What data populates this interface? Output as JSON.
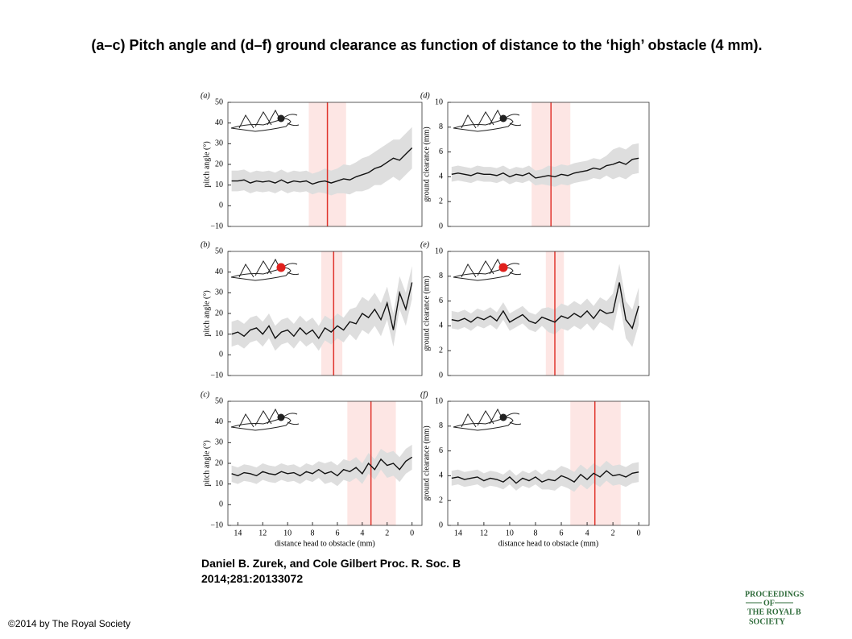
{
  "slide": {
    "title": "(a–c) Pitch angle and (d–f) ground clearance as function of distance to the ‘high’ obstacle (4 mm).",
    "citation": "Daniel B. Zurek, and Cole Gilbert Proc. R. Soc. B 2014;281:20133072",
    "copyright": "©2014 by The Royal Society",
    "logo": [
      "PROCEEDINGS",
      "OF",
      "THE ROYAL",
      "SOCIETY",
      "B"
    ]
  },
  "chart_data": [
    {
      "type": "line",
      "title": "(a)",
      "ylabel": "pitch angle (°)",
      "x": [
        14.5,
        14,
        13.5,
        13,
        12.5,
        12,
        11.5,
        11,
        10.5,
        10,
        9.5,
        9,
        8.5,
        8,
        7.5,
        7,
        6.5,
        6,
        5.5,
        5,
        4.5,
        4,
        3.5,
        3,
        2.5,
        2,
        1.5,
        1,
        0.5,
        0
      ],
      "series": [
        {
          "color": "#111111",
          "band_color": "#dedede",
          "values": [
            12,
            12,
            12.5,
            11,
            12,
            11.5,
            12,
            11,
            12.5,
            11,
            12,
            11.5,
            12,
            10.5,
            11.5,
            12,
            11,
            12,
            13,
            12.5,
            14,
            15,
            16,
            18,
            19,
            21,
            23,
            22,
            25,
            28
          ],
          "errors": [
            5,
            5,
            5,
            5,
            5,
            5,
            5,
            5,
            5,
            5,
            5,
            5,
            5,
            5,
            5,
            6,
            6,
            6,
            7,
            7,
            7,
            8,
            8,
            8,
            9,
            9,
            9,
            10,
            10,
            10
          ]
        }
      ],
      "xlim": [
        14.8,
        -0.8
      ],
      "ylim": [
        -10,
        50
      ],
      "yticks": [
        {
          "value": -10,
          "label": "−10"
        },
        0,
        10,
        20,
        30,
        40,
        50
      ],
      "vline": {
        "x": 6.8,
        "color": "#e0342c"
      },
      "vspan": {
        "range": [
          8.3,
          5.3
        ],
        "color": "#fde6e4"
      }
    },
    {
      "type": "line",
      "title": "(b)",
      "ylabel": "pitch angle (°)",
      "x": [
        14.5,
        14,
        13.5,
        13,
        12.5,
        12,
        11.5,
        11,
        10.5,
        10,
        9.5,
        9,
        8.5,
        8,
        7.5,
        7,
        6.5,
        6,
        5.5,
        5,
        4.5,
        4,
        3.5,
        3,
        2.5,
        2,
        1.5,
        1,
        0.5,
        0
      ],
      "series": [
        {
          "color": "#111111",
          "band_color": "#dedede",
          "values": [
            10,
            11,
            9,
            12,
            13,
            10,
            14,
            8,
            11,
            12,
            9,
            13,
            10,
            12,
            8,
            13,
            11,
            14,
            12,
            16,
            15,
            20,
            18,
            22,
            17,
            25,
            12,
            30,
            22,
            35
          ],
          "errors": [
            6,
            6,
            6,
            6,
            6,
            6,
            6,
            6,
            6,
            6,
            6,
            6,
            6,
            6,
            6,
            6,
            6,
            6,
            6,
            6,
            8,
            8,
            8,
            8,
            8,
            8,
            8,
            8,
            8,
            8
          ]
        }
      ],
      "xlim": [
        14.8,
        -0.8
      ],
      "ylim": [
        -10,
        50
      ],
      "yticks": [
        {
          "value": -10,
          "label": "−10"
        },
        0,
        10,
        20,
        30,
        40,
        50
      ],
      "vline": {
        "x": 6.3,
        "color": "#e0342c"
      },
      "vspan": {
        "range": [
          7.3,
          5.6
        ],
        "color": "#fde6e4"
      }
    },
    {
      "type": "line",
      "title": "(c)",
      "ylabel": "pitch angle (°)",
      "xlabel": "distance head to obstacle (mm)",
      "x": [
        14.5,
        14,
        13.5,
        13,
        12.5,
        12,
        11.5,
        11,
        10.5,
        10,
        9.5,
        9,
        8.5,
        8,
        7.5,
        7,
        6.5,
        6,
        5.5,
        5,
        4.5,
        4,
        3.5,
        3,
        2.5,
        2,
        1.5,
        1,
        0.5,
        0
      ],
      "series": [
        {
          "color": "#111111",
          "band_color": "#dedede",
          "values": [
            15,
            14,
            15.5,
            15,
            14,
            16,
            15,
            14.5,
            16,
            15,
            15.5,
            14,
            16,
            15,
            17,
            15,
            16,
            14,
            17,
            16,
            18,
            15,
            20,
            17,
            22,
            19,
            20,
            17,
            21,
            23
          ],
          "errors": [
            4,
            4,
            4,
            4,
            4,
            4,
            4,
            4,
            4,
            4,
            4,
            4,
            4,
            4,
            4,
            5,
            5,
            5,
            5,
            5,
            5,
            5,
            5,
            5,
            5,
            6,
            6,
            6,
            6,
            6
          ]
        }
      ],
      "xlim": [
        14.8,
        -0.8
      ],
      "ylim": [
        -10,
        50
      ],
      "yticks": [
        {
          "value": -10,
          "label": "−10"
        },
        0,
        10,
        20,
        30,
        40,
        50
      ],
      "xticks": [
        14,
        12,
        10,
        8,
        6,
        4,
        2,
        0
      ],
      "vline": {
        "x": 3.3,
        "color": "#e0342c"
      },
      "vspan": {
        "range": [
          5.2,
          1.3
        ],
        "color": "#fde6e4"
      }
    },
    {
      "type": "line",
      "title": "(d)",
      "ylabel": "ground clearance (mm)",
      "x": [
        14.5,
        14,
        13.5,
        13,
        12.5,
        12,
        11.5,
        11,
        10.5,
        10,
        9.5,
        9,
        8.5,
        8,
        7.5,
        7,
        6.5,
        6,
        5.5,
        5,
        4.5,
        4,
        3.5,
        3,
        2.5,
        2,
        1.5,
        1,
        0.5,
        0
      ],
      "series": [
        {
          "color": "#111111",
          "band_color": "#dedede",
          "values": [
            4.2,
            4.3,
            4.2,
            4.1,
            4.3,
            4.2,
            4.2,
            4.1,
            4.3,
            4.0,
            4.2,
            4.1,
            4.3,
            3.9,
            4.0,
            4.1,
            4.0,
            4.2,
            4.1,
            4.3,
            4.4,
            4.5,
            4.7,
            4.6,
            4.9,
            5.0,
            5.2,
            5.0,
            5.4,
            5.5
          ],
          "errors": [
            0.6,
            0.6,
            0.6,
            0.6,
            0.6,
            0.6,
            0.6,
            0.6,
            0.6,
            0.6,
            0.6,
            0.6,
            0.6,
            0.6,
            0.6,
            0.8,
            0.8,
            0.8,
            0.8,
            0.8,
            0.8,
            0.8,
            0.8,
            0.8,
            0.8,
            1.2,
            1.2,
            1.2,
            1.2,
            1.2
          ]
        }
      ],
      "xlim": [
        14.8,
        -0.8
      ],
      "ylim": [
        0,
        10
      ],
      "yticks": [
        0,
        2,
        4,
        6,
        8,
        10
      ],
      "vline": {
        "x": 6.8,
        "color": "#e0342c"
      },
      "vspan": {
        "range": [
          8.3,
          5.3
        ],
        "color": "#fde6e4"
      }
    },
    {
      "type": "line",
      "title": "(e)",
      "ylabel": "ground clearance (mm)",
      "x": [
        14.5,
        14,
        13.5,
        13,
        12.5,
        12,
        11.5,
        11,
        10.5,
        10,
        9.5,
        9,
        8.5,
        8,
        7.5,
        7,
        6.5,
        6,
        5.5,
        5,
        4.5,
        4,
        3.5,
        3,
        2.5,
        2,
        1.5,
        1,
        0.5,
        0
      ],
      "series": [
        {
          "color": "#111111",
          "band_color": "#dedede",
          "values": [
            4.5,
            4.4,
            4.6,
            4.3,
            4.7,
            4.5,
            4.8,
            4.4,
            5.2,
            4.3,
            4.6,
            4.9,
            4.4,
            4.2,
            4.7,
            4.5,
            4.3,
            4.8,
            4.6,
            5.0,
            4.7,
            5.2,
            4.6,
            5.3,
            5.0,
            5.1,
            7.5,
            4.5,
            3.8,
            5.6
          ],
          "errors": [
            0.7,
            0.7,
            0.7,
            0.7,
            0.7,
            0.7,
            0.7,
            0.7,
            0.7,
            0.7,
            0.7,
            0.7,
            0.7,
            0.7,
            0.7,
            1.0,
            1.0,
            1.0,
            1.0,
            1.0,
            1.0,
            1.0,
            1.0,
            1.0,
            1.0,
            1.5,
            1.5,
            1.5,
            1.5,
            1.5
          ]
        }
      ],
      "xlim": [
        14.8,
        -0.8
      ],
      "ylim": [
        0,
        10
      ],
      "yticks": [
        0,
        2,
        4,
        6,
        8,
        10
      ],
      "vline": {
        "x": 6.5,
        "color": "#e0342c"
      },
      "vspan": {
        "range": [
          7.2,
          5.8
        ],
        "color": "#fde6e4"
      }
    },
    {
      "type": "line",
      "title": "(f)",
      "ylabel": "ground clearance (mm)",
      "xlabel": "distance head to obstacle (mm)",
      "x": [
        14.5,
        14,
        13.5,
        13,
        12.5,
        12,
        11.5,
        11,
        10.5,
        10,
        9.5,
        9,
        8.5,
        8,
        7.5,
        7,
        6.5,
        6,
        5.5,
        5,
        4.5,
        4,
        3.5,
        3,
        2.5,
        2,
        1.5,
        1,
        0.5,
        0
      ],
      "series": [
        {
          "color": "#111111",
          "band_color": "#dedede",
          "values": [
            3.8,
            3.9,
            3.7,
            3.8,
            3.9,
            3.6,
            3.8,
            3.7,
            3.5,
            3.9,
            3.4,
            3.8,
            3.6,
            3.9,
            3.5,
            3.7,
            3.6,
            4.0,
            3.8,
            3.5,
            4.1,
            3.7,
            4.2,
            3.9,
            4.4,
            4.0,
            4.1,
            3.9,
            4.2,
            4.3
          ],
          "errors": [
            0.6,
            0.6,
            0.6,
            0.6,
            0.6,
            0.6,
            0.6,
            0.6,
            0.6,
            0.6,
            0.6,
            0.6,
            0.6,
            0.6,
            0.6,
            0.8,
            0.8,
            0.8,
            0.8,
            0.8,
            0.8,
            0.8,
            0.8,
            0.8,
            0.8,
            0.8,
            0.8,
            0.8,
            0.8,
            0.8
          ]
        }
      ],
      "xlim": [
        14.8,
        -0.8
      ],
      "ylim": [
        0,
        10
      ],
      "yticks": [
        0,
        2,
        4,
        6,
        8,
        10
      ],
      "xticks": [
        14,
        12,
        10,
        8,
        6,
        4,
        2,
        0
      ],
      "vline": {
        "x": 3.4,
        "color": "#e0342c"
      },
      "vspan": {
        "range": [
          5.3,
          1.4
        ],
        "color": "#fde6e4"
      }
    }
  ]
}
